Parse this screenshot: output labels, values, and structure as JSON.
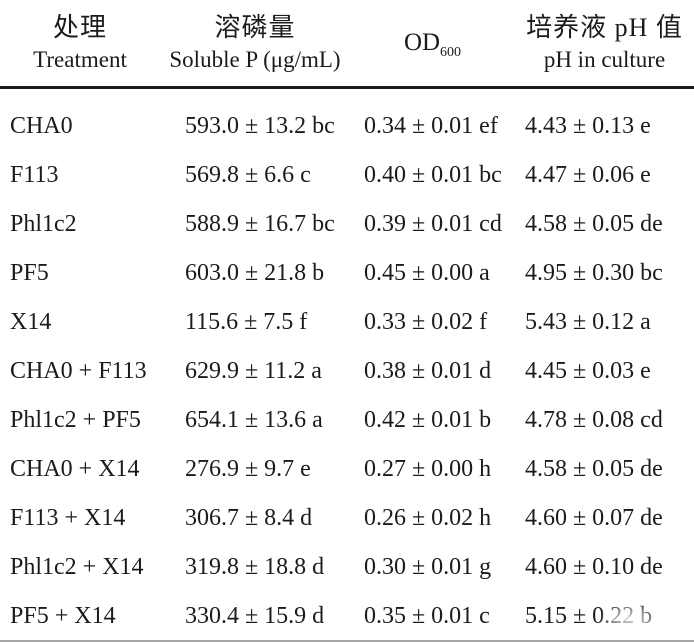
{
  "colors": {
    "background": "#ffffff",
    "text": "#1b1b1b",
    "header_rule": "#1b1b1b",
    "bottom_rule": "#9fa5ad"
  },
  "table": {
    "headers": {
      "treatment": {
        "zh": "处理",
        "en": "Treatment"
      },
      "soluble_p": {
        "zh": "溶磷量",
        "en": "Soluble P (μg/mL)"
      },
      "od": {
        "main": "OD",
        "sub": "600"
      },
      "ph": {
        "zh": "培养液 pH 值",
        "en": "pH in culture"
      }
    },
    "rows": [
      {
        "treatment": "CHA0",
        "soluble_p": "593.0 ± 13.2 bc",
        "od600": "0.34 ± 0.01 ef",
        "ph": "4.43 ± 0.13 e"
      },
      {
        "treatment": "F113",
        "soluble_p": "569.8 ± 6.6 c",
        "od600": "0.40 ± 0.01 bc",
        "ph": "4.47 ± 0.06 e"
      },
      {
        "treatment": "Phl1c2",
        "soluble_p": "588.9 ± 16.7 bc",
        "od600": "0.39 ± 0.01 cd",
        "ph": "4.58 ± 0.05 de"
      },
      {
        "treatment": "PF5",
        "soluble_p": "603.0 ± 21.8 b",
        "od600": "0.45 ± 0.00 a",
        "ph": "4.95 ± 0.30 bc"
      },
      {
        "treatment": "X14",
        "soluble_p": "115.6 ± 7.5 f",
        "od600": "0.33 ± 0.02 f",
        "ph": "5.43 ± 0.12 a"
      },
      {
        "treatment": "CHA0 + F113",
        "soluble_p": "629.9 ± 11.2 a",
        "od600": "0.38 ± 0.01 d",
        "ph": "4.45 ± 0.03 e"
      },
      {
        "treatment": "Phl1c2 + PF5",
        "soluble_p": "654.1 ± 13.6 a",
        "od600": "0.42 ± 0.01 b",
        "ph": "4.78 ± 0.08 cd"
      },
      {
        "treatment": "CHA0 + X14",
        "soluble_p": "276.9 ± 9.7 e",
        "od600": "0.27 ± 0.00 h",
        "ph": "4.58 ± 0.05 de"
      },
      {
        "treatment": "F113 + X14",
        "soluble_p": "306.7 ± 8.4 d",
        "od600": "0.26 ± 0.02 h",
        "ph": "4.60 ± 0.07 de"
      },
      {
        "treatment": "Phl1c2 + X14",
        "soluble_p": "319.8 ± 18.8 d",
        "od600": "0.30 ± 0.01 g",
        "ph": "4.60 ± 0.10 de"
      },
      {
        "treatment": "PF5 + X14",
        "soluble_p": "330.4 ± 15.9 d",
        "od600": "0.35 ± 0.01 c",
        "ph": "5.15 ± 0.22 b"
      }
    ]
  }
}
